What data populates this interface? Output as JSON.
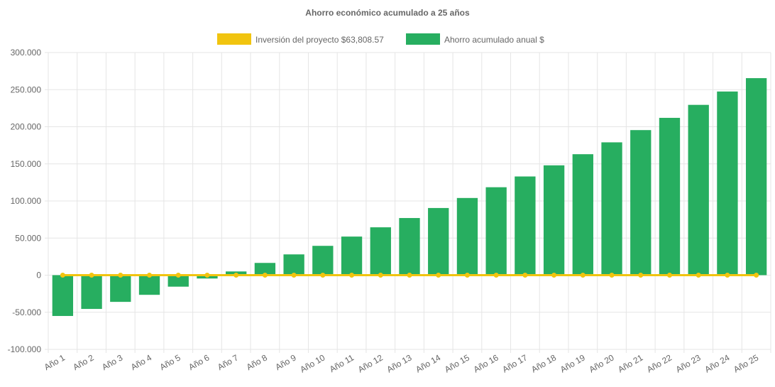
{
  "chart_data": {
    "type": "bar",
    "title": "Ahorro económico acumulado a 25 años",
    "categories": [
      "Año 1",
      "Año 2",
      "Año 3",
      "Año 4",
      "Año 5",
      "Año 6",
      "Año 7",
      "Año 8",
      "Año 9",
      "Año 10",
      "Año 11",
      "Año 12",
      "Año 13",
      "Año 14",
      "Año 15",
      "Año 16",
      "Año 17",
      "Año 18",
      "Año 19",
      "Año 20",
      "Año 21",
      "Año 22",
      "Año 23",
      "Año 24",
      "Año 25"
    ],
    "series": [
      {
        "name": "Inversión del proyecto $63,808.57",
        "type": "line",
        "color": "#f1c40f",
        "values": [
          0,
          0,
          0,
          0,
          0,
          0,
          0,
          0,
          0,
          0,
          0,
          0,
          0,
          0,
          0,
          0,
          0,
          0,
          0,
          0,
          0,
          0,
          0,
          0,
          0
        ]
      },
      {
        "name": "Ahorro acumulado anual $",
        "type": "bar",
        "color": "#27ae60",
        "values": [
          -55000,
          -45500,
          -36000,
          -26500,
          -15500,
          -4500,
          5000,
          16500,
          28000,
          39500,
          52000,
          64500,
          77000,
          90500,
          104000,
          118500,
          133000,
          148000,
          163000,
          179000,
          195500,
          212000,
          229500,
          247500,
          265500
        ]
      }
    ],
    "ylim": [
      -100000,
      300000
    ],
    "yticks": [
      300000,
      250000,
      200000,
      150000,
      100000,
      50000,
      0,
      -50000,
      -100000
    ],
    "ytick_labels": [
      "300.000",
      "250.000",
      "200.000",
      "150.000",
      "100.000",
      "50.000",
      "0",
      "-50.000",
      "-100.000"
    ],
    "grid": true,
    "legend_position": "top"
  }
}
